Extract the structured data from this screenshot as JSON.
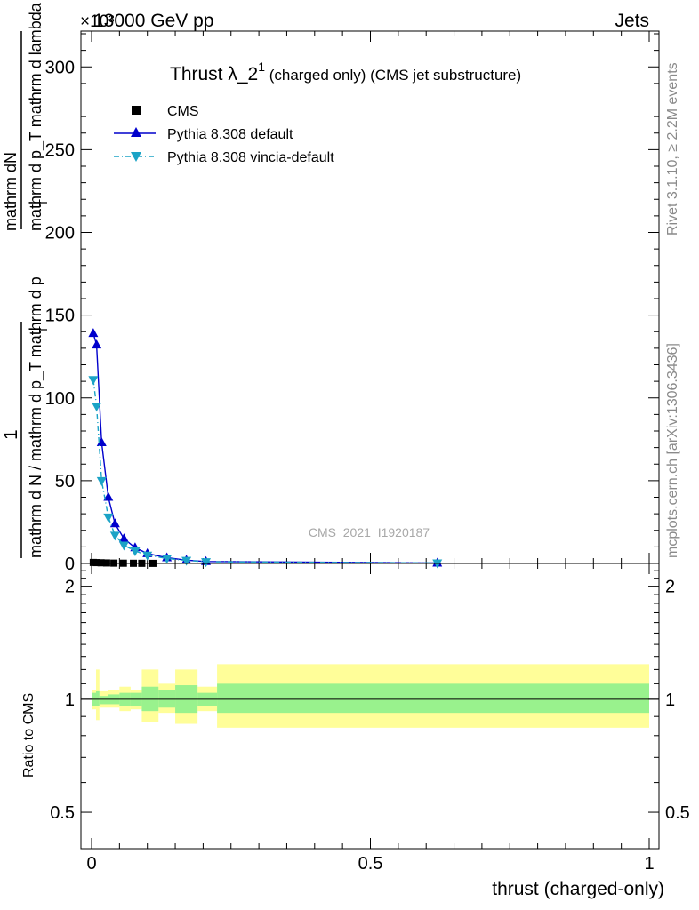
{
  "header": {
    "left": "13000 GeV pp",
    "right": "Jets",
    "exponent": "×10³"
  },
  "side_labels": {
    "rivet": "Rivet 3.1.10, ≥ 2.2M events",
    "mcplots": "mcplots.cern.ch [arXiv:1306.3436]"
  },
  "watermark": "CMS_2021_I1920187",
  "chart_data": [
    {
      "type": "line",
      "panel": "main",
      "title": {
        "main": "Thrust λ_2",
        "sup": "1",
        "sub": " (charged only) (CMS jet substructure)"
      },
      "xlabel": "thrust (charged-only)",
      "ylabel": {
        "num": "1",
        "den_top": "mathrm dN",
        "den_bottom": "mathrm d p_T mathrm d lambda",
        "den_line1": "mathrm d N / mathrm d p_T mathrm d p",
        "den_line2": "mathrm d p",
        "den_sub_T": "T",
        "den_sub_T2": "T"
      },
      "xlim": [
        0,
        1
      ],
      "ylim": [
        0,
        320
      ],
      "yticks": [
        0,
        50,
        100,
        150,
        200,
        250,
        300
      ],
      "xticks": [
        0,
        0.5,
        1
      ],
      "xtick_labels": [
        "0",
        "0.5",
        "1"
      ],
      "legend": {
        "position": "top-left",
        "entries": [
          "CMS",
          "Pythia 8.308 default",
          "Pythia 8.308 vincia-default"
        ]
      },
      "series": [
        {
          "name": "CMS",
          "color": "#000000",
          "marker": "square",
          "x": [
            0.003,
            0.009,
            0.017,
            0.027,
            0.04,
            0.057,
            0.075,
            0.09,
            0.11
          ],
          "y": [
            0.6,
            0.5,
            0.4,
            0.3,
            0.2,
            0.15,
            0.1,
            0.08,
            0.05
          ]
        },
        {
          "name": "Pythia 8.308 default",
          "color": "#0000cc",
          "marker": "triangle-up",
          "x": [
            0.003,
            0.009,
            0.018,
            0.03,
            0.042,
            0.058,
            0.078,
            0.1,
            0.135,
            0.17,
            0.205,
            0.62
          ],
          "y": [
            139,
            132,
            73,
            40,
            24,
            15,
            9.5,
            6,
            3.5,
            2,
            1.2,
            0.3
          ]
        },
        {
          "name": "Pythia 8.308 vincia-default",
          "color": "#1ba3c6",
          "marker": "triangle-down",
          "x": [
            0.003,
            0.009,
            0.018,
            0.03,
            0.042,
            0.058,
            0.078,
            0.1,
            0.135,
            0.17,
            0.205,
            0.62
          ],
          "y": [
            111,
            95,
            50,
            28,
            17,
            11,
            7.5,
            5,
            3,
            1.8,
            1,
            0.3
          ]
        }
      ]
    },
    {
      "type": "area",
      "panel": "ratio",
      "ylabel": "Ratio to CMS",
      "yscale": "log",
      "ylim": [
        0.4,
        2.3
      ],
      "yticks": [
        0.5,
        1,
        2
      ],
      "ytick_labels": [
        "0.5",
        "1",
        "2"
      ],
      "reference": 1,
      "bands": {
        "inner_color": "#99f28d",
        "outer_color": "#fffe99",
        "bins": [
          {
            "x0": 0.0,
            "x1": 0.008,
            "in_lo": 0.96,
            "in_hi": 1.04,
            "out_lo": 0.94,
            "out_hi": 1.06
          },
          {
            "x0": 0.008,
            "x1": 0.014,
            "in_lo": 0.96,
            "in_hi": 1.05,
            "out_lo": 0.88,
            "out_hi": 1.2
          },
          {
            "x0": 0.014,
            "x1": 0.03,
            "in_lo": 0.97,
            "in_hi": 1.02,
            "out_lo": 0.95,
            "out_hi": 1.05
          },
          {
            "x0": 0.03,
            "x1": 0.05,
            "in_lo": 0.97,
            "in_hi": 1.03,
            "out_lo": 0.95,
            "out_hi": 1.06
          },
          {
            "x0": 0.05,
            "x1": 0.07,
            "in_lo": 0.96,
            "in_hi": 1.04,
            "out_lo": 0.93,
            "out_hi": 1.08
          },
          {
            "x0": 0.07,
            "x1": 0.09,
            "in_lo": 0.96,
            "in_hi": 1.04,
            "out_lo": 0.94,
            "out_hi": 1.06
          },
          {
            "x0": 0.09,
            "x1": 0.12,
            "in_lo": 0.93,
            "in_hi": 1.08,
            "out_lo": 0.87,
            "out_hi": 1.2
          },
          {
            "x0": 0.12,
            "x1": 0.15,
            "in_lo": 0.95,
            "in_hi": 1.06,
            "out_lo": 0.92,
            "out_hi": 1.1
          },
          {
            "x0": 0.15,
            "x1": 0.19,
            "in_lo": 0.92,
            "in_hi": 1.09,
            "out_lo": 0.86,
            "out_hi": 1.2
          },
          {
            "x0": 0.19,
            "x1": 0.225,
            "in_lo": 0.96,
            "in_hi": 1.04,
            "out_lo": 0.93,
            "out_hi": 1.08
          },
          {
            "x0": 0.225,
            "x1": 1.0,
            "in_lo": 0.92,
            "in_hi": 1.1,
            "out_lo": 0.84,
            "out_hi": 1.24
          }
        ]
      }
    }
  ]
}
